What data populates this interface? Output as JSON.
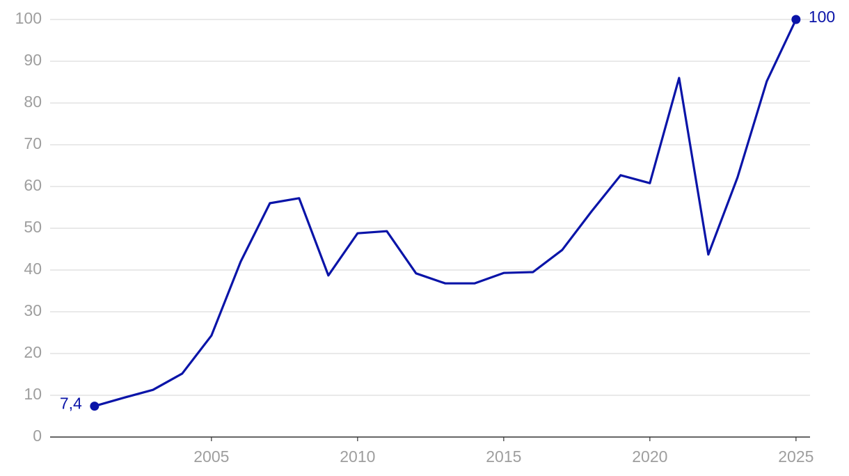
{
  "chart_data": {
    "type": "line",
    "x": [
      2001,
      2002,
      2003,
      2004,
      2005,
      2006,
      2007,
      2008,
      2009,
      2010,
      2011,
      2012,
      2013,
      2014,
      2015,
      2016,
      2017,
      2018,
      2019,
      2020,
      2021,
      2022,
      2023,
      2024,
      2025
    ],
    "series": [
      {
        "color": "#0a14a8",
        "values": [
          7.4,
          9.4,
          11.3,
          15.2,
          24.3,
          42,
          56,
          57.2,
          38.7,
          48.8,
          49.3,
          39.2,
          36.8,
          36.8,
          39.3,
          39.5,
          44.8,
          54,
          62.7,
          60.8,
          86,
          43.7,
          62.2,
          85.2,
          100
        ],
        "value_labels": [
          "7,4",
          null,
          null,
          null,
          null,
          null,
          null,
          null,
          null,
          null,
          null,
          null,
          null,
          null,
          null,
          null,
          null,
          null,
          null,
          null,
          null,
          null,
          null,
          null,
          "100"
        ]
      }
    ],
    "xlim": [
      1999.48,
      2025.48
    ],
    "xticks": [
      2005,
      2010,
      2015,
      2020,
      2025
    ],
    "ylim": [
      0,
      100
    ],
    "yticks": [
      0,
      10,
      20,
      30,
      40,
      50,
      60,
      70,
      80,
      90,
      100
    ],
    "grid": true
  }
}
